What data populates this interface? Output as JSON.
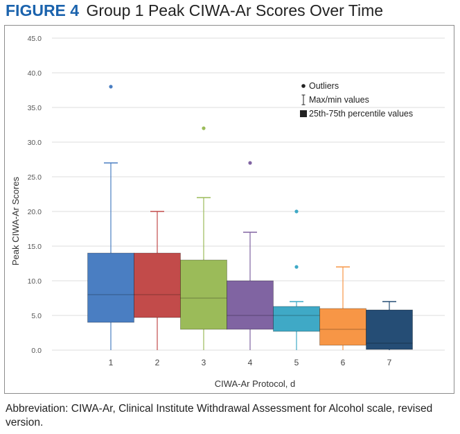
{
  "figure": {
    "label": "FIGURE 4",
    "title": "Group 1 Peak CIWA-Ar Scores Over Time",
    "footnote": "Abbreviation: CIWA-Ar, Clinical Institute Withdrawal Assessment for Alcohol scale, revised version."
  },
  "chart_data": {
    "type": "box",
    "title": "Group 1 Peak CIWA-Ar Scores Over Time",
    "xlabel": "CIWA-Ar Protocol, d",
    "ylabel": "Peak CIWA-Ar Scores",
    "ylim": [
      0,
      45
    ],
    "yticks": [
      "0.0",
      "5.0",
      "10.0",
      "15.0",
      "20.0",
      "25.0",
      "30.0",
      "35.0",
      "40.0",
      "45.0"
    ],
    "grid": true,
    "legend": {
      "position": "top-right",
      "items": [
        {
          "symbol": "dot",
          "label": "Outliers"
        },
        {
          "symbol": "whisker",
          "label": "Max/min values"
        },
        {
          "symbol": "square",
          "label": "25th-75th percentile values"
        }
      ]
    },
    "categories": [
      "1",
      "2",
      "3",
      "4",
      "5",
      "6",
      "7"
    ],
    "series": [
      {
        "category": "1",
        "min": 0,
        "q1": 4,
        "median": 8,
        "q3": 14,
        "max": 27,
        "outliers": [
          38
        ],
        "color": "#4a7ec2"
      },
      {
        "category": "2",
        "min": 0,
        "q1": 4.7,
        "median": 8,
        "q3": 14,
        "max": 20,
        "outliers": [],
        "color": "#c24b4a"
      },
      {
        "category": "3",
        "min": 0,
        "q1": 3,
        "median": 7.5,
        "q3": 13,
        "max": 22,
        "outliers": [
          32
        ],
        "color": "#9bbb59"
      },
      {
        "category": "4",
        "min": 0,
        "q1": 3,
        "median": 5,
        "q3": 10,
        "max": 17,
        "outliers": [
          27
        ],
        "color": "#8064a2"
      },
      {
        "category": "5",
        "min": 0,
        "q1": 2.7,
        "median": 5,
        "q3": 6.3,
        "max": 7,
        "outliers": [
          12,
          20
        ],
        "color": "#3fa9c6"
      },
      {
        "category": "6",
        "min": 0,
        "q1": 0.7,
        "median": 3,
        "q3": 6,
        "max": 12,
        "outliers": [],
        "color": "#f79646"
      },
      {
        "category": "7",
        "min": 0,
        "q1": 0.1,
        "median": 1,
        "q3": 5.8,
        "max": 7,
        "outliers": [],
        "color": "#254d75"
      }
    ]
  }
}
